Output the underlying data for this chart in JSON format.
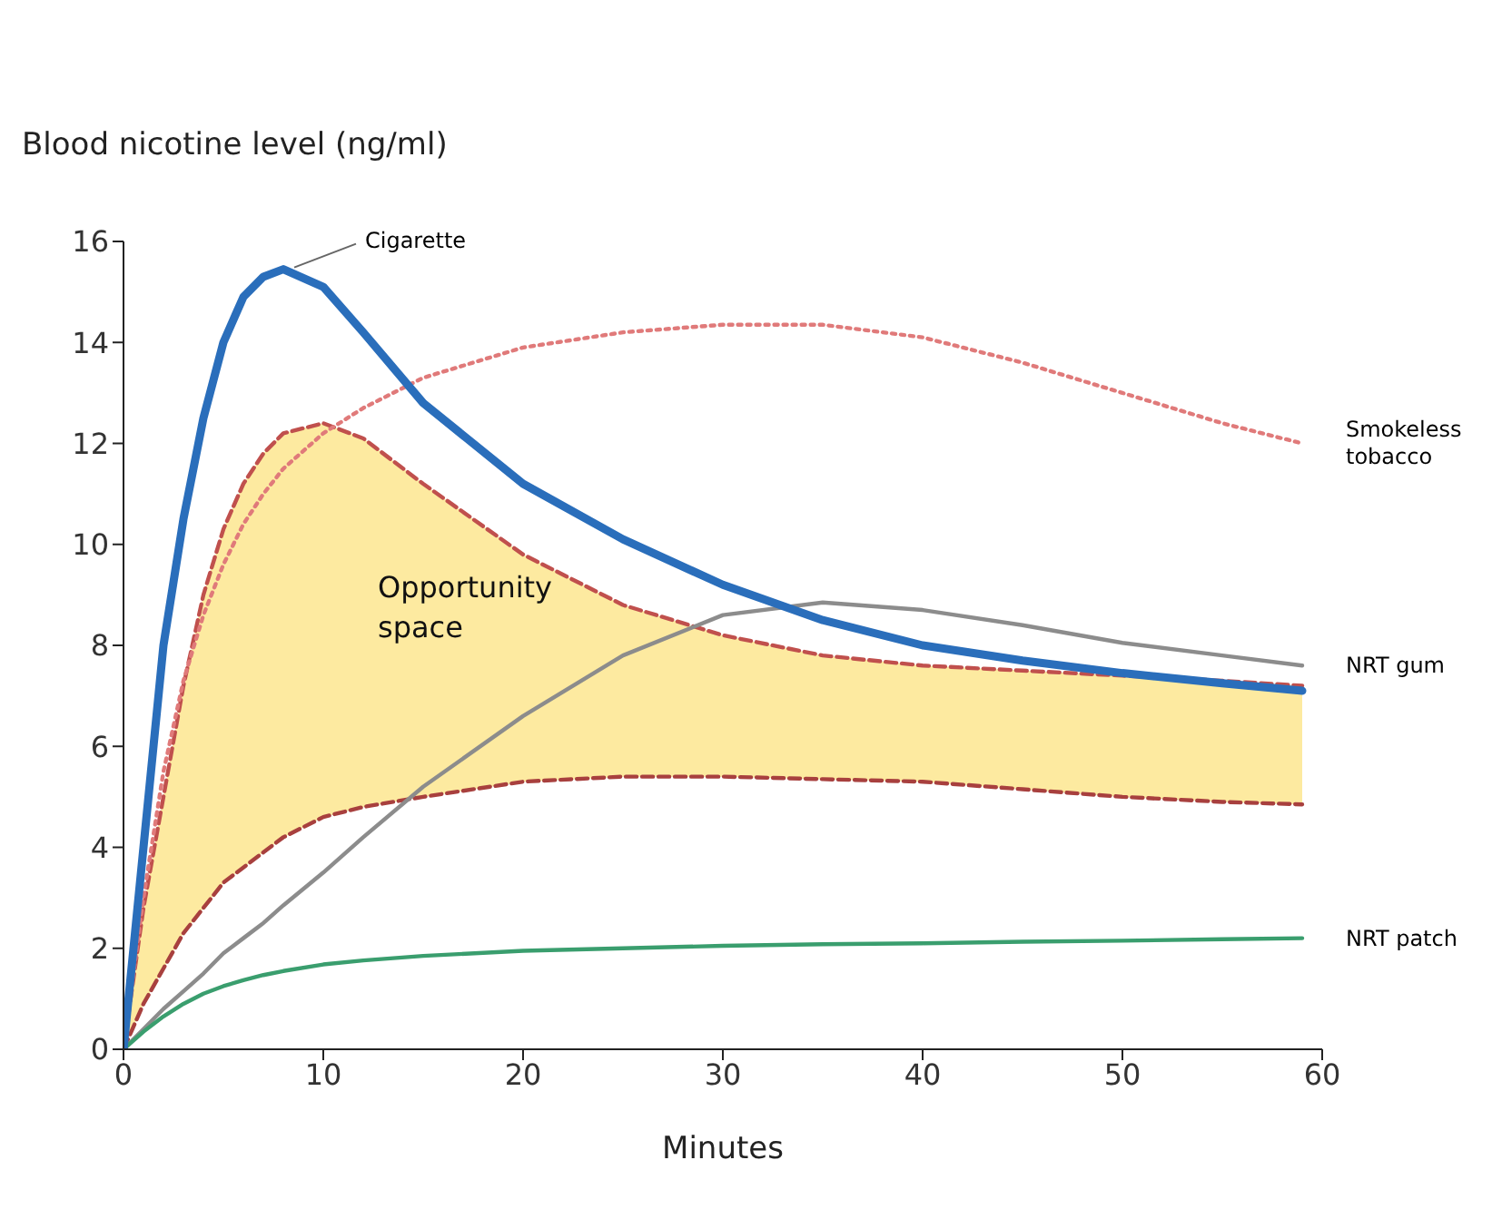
{
  "chart_data": {
    "type": "line",
    "xlabel": "Minutes",
    "ylabel": "Blood nicotine level (ng/ml)",
    "xlim": [
      0,
      60
    ],
    "xticks": [
      0,
      10,
      20,
      30,
      40,
      50,
      60
    ],
    "ylim": [
      0,
      16
    ],
    "yticks": [
      0,
      2,
      4,
      6,
      8,
      10,
      12,
      14,
      16
    ],
    "grid": false,
    "legend": false,
    "marker": "none",
    "x": [
      0,
      1,
      2,
      3,
      4,
      5,
      6,
      7,
      8,
      10,
      12,
      15,
      20,
      25,
      30,
      35,
      40,
      45,
      50,
      55,
      59
    ],
    "series": [
      {
        "color": "#c0504d",
        "line_style": "dashed",
        "values": [
          0,
          2.8,
          5,
          7.2,
          9,
          10.3,
          11.2,
          11.8,
          12.2,
          12.4,
          12.1,
          11.2,
          9.8,
          8.8,
          8.2,
          7.8,
          7.6,
          7.5,
          7.4,
          7.3,
          7.2
        ],
        "lower": [
          0,
          0.9,
          1.6,
          2.3,
          2.8,
          3.3,
          3.6,
          3.9,
          4.2,
          4.6,
          4.8,
          5.0,
          5.3,
          5.4,
          5.4,
          5.35,
          5.3,
          5.15,
          5.0,
          4.9,
          4.85
        ],
        "upper": [
          0,
          2.8,
          5,
          7.2,
          9,
          10.3,
          11.2,
          11.8,
          12.2,
          12.4,
          12.1,
          11.2,
          9.8,
          8.8,
          8.2,
          7.8,
          7.6,
          7.5,
          7.4,
          7.3,
          7.2
        ]
      },
      {
        "color": "#a8403e",
        "line_style": "dashed",
        "values": [
          0,
          0.9,
          1.6,
          2.3,
          2.8,
          3.3,
          3.6,
          3.9,
          4.2,
          4.6,
          4.8,
          5.0,
          5.3,
          5.4,
          5.4,
          5.35,
          5.3,
          5.15,
          5.0,
          4.9,
          4.85
        ]
      },
      {
        "name": "Smokeless tobacco",
        "color": "#e07a7a",
        "line_style": "dotted",
        "values": [
          0,
          3,
          5.5,
          7.3,
          8.6,
          9.6,
          10.4,
          11,
          11.5,
          12.2,
          12.7,
          13.3,
          13.9,
          14.2,
          14.35,
          14.35,
          14.1,
          13.6,
          13.0,
          12.4,
          12.0
        ]
      },
      {
        "name": "NRT gum",
        "color": "#8c8c8c",
        "line_style": "solid",
        "values": [
          0,
          0.4,
          0.8,
          1.15,
          1.5,
          1.9,
          2.2,
          2.5,
          2.85,
          3.5,
          4.2,
          5.2,
          6.6,
          7.8,
          8.6,
          8.85,
          8.7,
          8.4,
          8.05,
          7.8,
          7.6
        ]
      },
      {
        "name": "NRT patch",
        "color": "#3a9e6e",
        "line_style": "solid",
        "values": [
          0,
          0.35,
          0.65,
          0.9,
          1.1,
          1.25,
          1.37,
          1.47,
          1.55,
          1.68,
          1.76,
          1.85,
          1.95,
          2.0,
          2.05,
          2.08,
          2.1,
          2.13,
          2.15,
          2.18,
          2.2
        ]
      },
      {
        "name": "Cigarette",
        "color": "#2a6ebb",
        "line_style": "solid",
        "values": [
          0,
          4,
          8,
          10.5,
          12.5,
          14,
          14.9,
          15.3,
          15.45,
          15.1,
          14.2,
          12.8,
          11.2,
          10.1,
          9.2,
          8.5,
          8.0,
          7.7,
          7.45,
          7.25,
          7.1
        ]
      }
    ],
    "annotations": [
      "Opportunity space"
    ]
  }
}
